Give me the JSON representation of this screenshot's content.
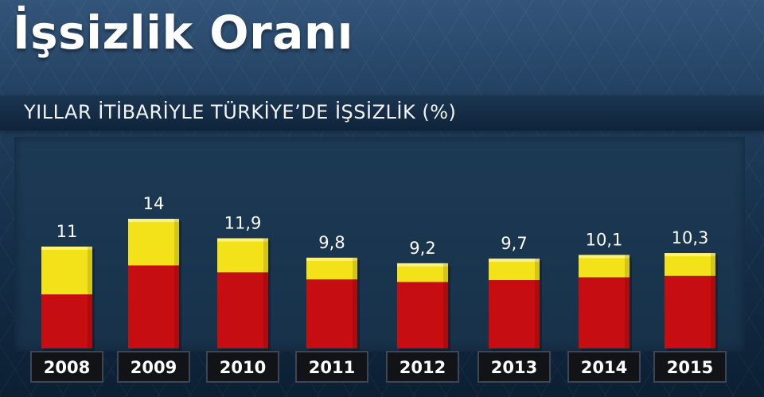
{
  "title": "İşsizlik Oranı",
  "subtitle": "YILLAR İTİBARİYLE TÜRKİYE’DE İŞSİZLİK (%)",
  "colors": {
    "top_segment": "#f3e21a",
    "bottom_segment": "#c60d12",
    "label_box": "#111317",
    "value_text": "#ffffff"
  },
  "chart_data": {
    "type": "bar",
    "title": "İşsizlik Oranı",
    "subtitle": "YILLAR İTİBARİYLE TÜRKİYE’DE İŞSİZLİK (%)",
    "xlabel": "",
    "ylabel": "",
    "categories": [
      "2008",
      "2009",
      "2010",
      "2011",
      "2012",
      "2013",
      "2014",
      "2015"
    ],
    "values": [
      11,
      14,
      11.9,
      9.8,
      9.2,
      9.7,
      10.1,
      10.3
    ],
    "value_labels": [
      "11",
      "14",
      "11,9",
      "9,8",
      "9,2",
      "9,7",
      "10,1",
      "10,3"
    ],
    "ylim": [
      0,
      14
    ],
    "grid": false,
    "legend": "none"
  }
}
